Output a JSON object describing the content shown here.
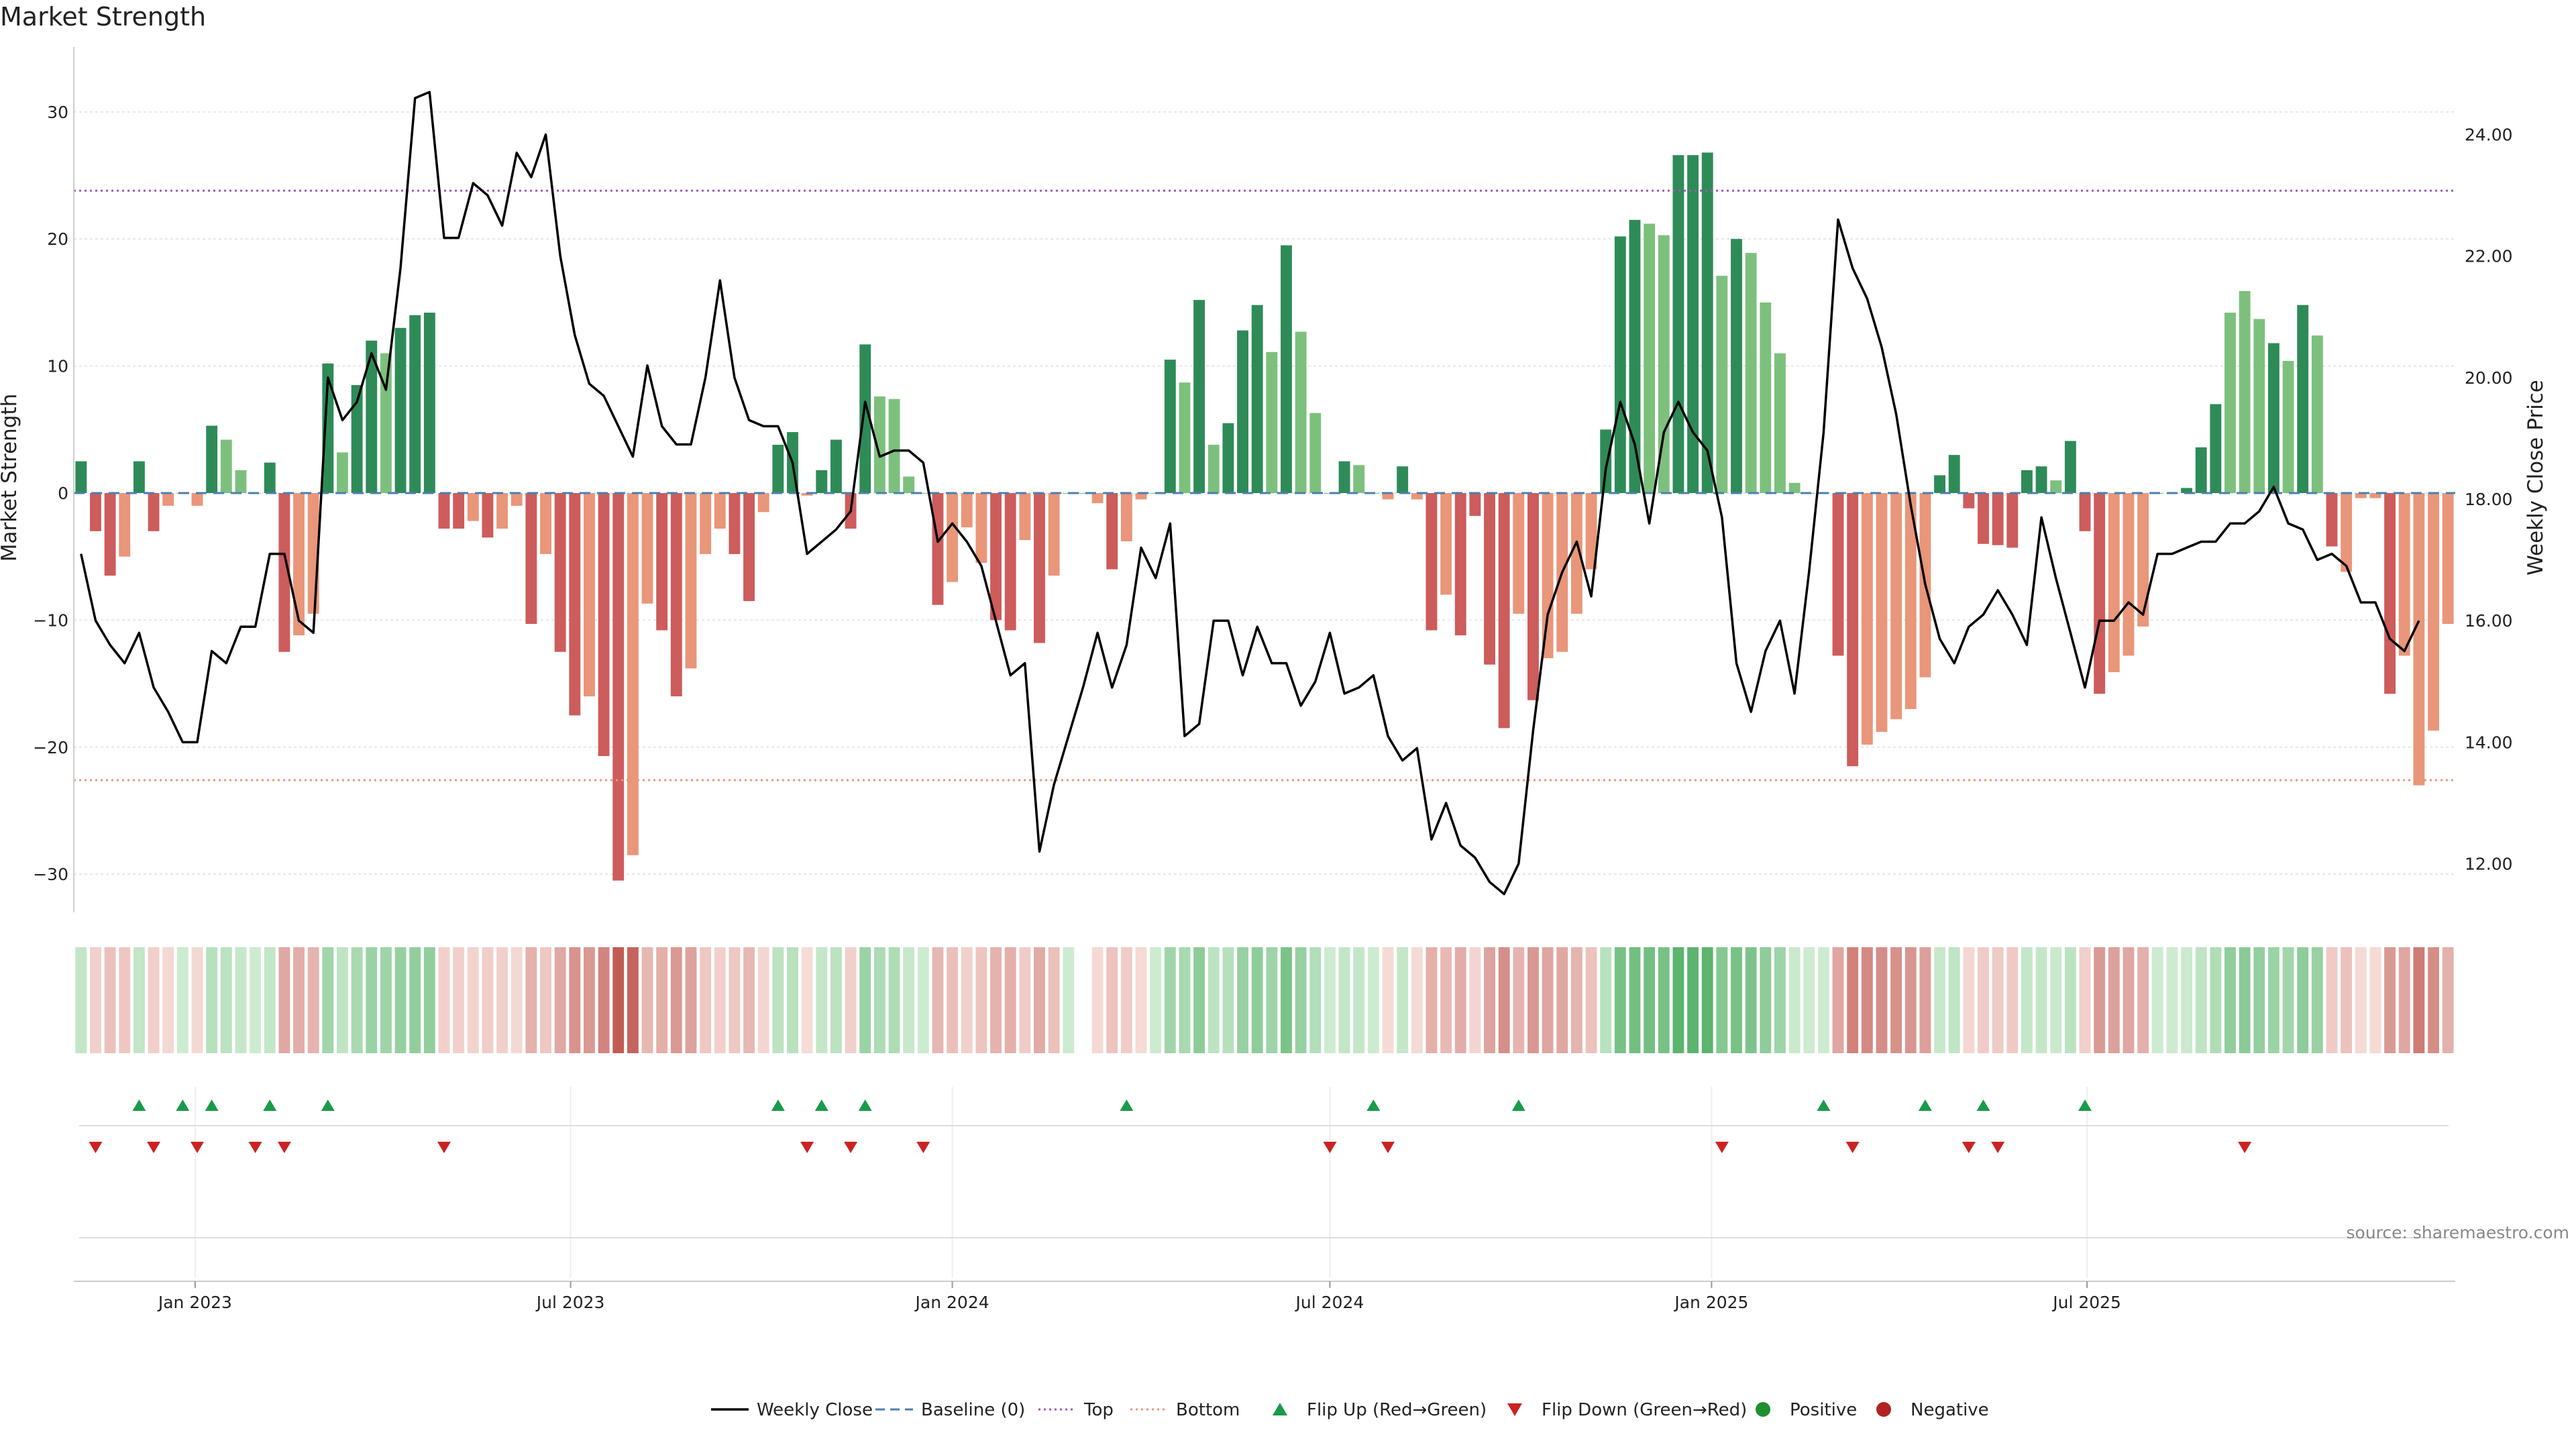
{
  "chart_data": {
    "title": "Market Strength",
    "type": "bar",
    "x_start": "2022-11-07",
    "x_step_days": 7,
    "left_axis": {
      "label": "Market Strength",
      "ylim": [
        -33,
        33
      ],
      "ticks": [
        30,
        20,
        10,
        0,
        -10,
        -20,
        -30
      ],
      "tick_labels": [
        "30",
        "20",
        "10",
        "0",
        "−10",
        "−20",
        "−30"
      ]
    },
    "right_axis": {
      "label": "Weekly Close Price",
      "ylim": [
        11.2,
        25.0
      ],
      "ticks": [
        24,
        22,
        20,
        18,
        16,
        14,
        12
      ],
      "tick_labels": [
        "24.00",
        "22.00",
        "20.00",
        "18.00",
        "16.00",
        "14.00",
        "12.00"
      ]
    },
    "x_ticks": [
      {
        "date": "2023-01-01",
        "label": "Jan 2023"
      },
      {
        "date": "2023-07-01",
        "label": "Jul 2023"
      },
      {
        "date": "2024-01-01",
        "label": "Jan 2024"
      },
      {
        "date": "2024-07-01",
        "label": "Jul 2024"
      },
      {
        "date": "2025-01-01",
        "label": "Jan 2025"
      },
      {
        "date": "2025-07-01",
        "label": "Jul 2025"
      }
    ],
    "grid": true,
    "reference_lines": {
      "baseline": 0,
      "top": 23.8,
      "bottom": -22.6
    },
    "colors": {
      "strong_green": "#2e8b57",
      "light_green": "#7dc07d",
      "strong_red": "#cd5c5c",
      "light_red": "#e9967a",
      "heat_green_light": "#cdebd0",
      "heat_green_dark": "#4aab5e",
      "heat_red_light": "#f6dcd8",
      "heat_red_dark": "#c05a52",
      "top_line": "#9b59b6",
      "bottom_line": "#e9967a",
      "baseline": "#4a7fb0",
      "flip_up": "#1a9a4a",
      "flip_down": "#cc2222",
      "positive": "#1f8f2f",
      "negative": "#b22222",
      "price_line": "#000000"
    },
    "strength": [
      2.5,
      -3,
      -6.5,
      -5,
      2.5,
      -3,
      -1,
      0,
      -1,
      5.3,
      4.2,
      1.8,
      0,
      2.4,
      -12.5,
      -11.2,
      -9.5,
      10.2,
      3.2,
      8.5,
      12,
      11,
      13,
      14,
      14.2,
      -2.8,
      -2.8,
      -2.2,
      -3.5,
      -2.8,
      -1,
      -10.3,
      -4.8,
      -12.5,
      -17.5,
      -16,
      -20.7,
      -30.5,
      -28.5,
      -8.7,
      -10.8,
      -16,
      -13.8,
      -4.8,
      -2.8,
      -4.8,
      -8.5,
      -1.5,
      3.8,
      4.8,
      -0.2,
      1.8,
      4.2,
      -2.8,
      11.7,
      7.6,
      7.4,
      1.3,
      0,
      -8.8,
      -7,
      -2.7,
      -5.5,
      -10,
      -10.8,
      -3.7,
      -11.8,
      -6.5,
      0,
      0,
      -0.8,
      -6,
      -3.8,
      -0.5,
      0,
      10.5,
      8.7,
      15.2,
      3.8,
      5.5,
      12.8,
      14.8,
      11.1,
      19.5,
      12.7,
      6.3,
      0,
      2.5,
      2.2,
      0,
      -0.5,
      2.1,
      -0.5,
      -10.8,
      -8,
      -11.2,
      -1.8,
      -13.5,
      -18.5,
      -9.5,
      -16.3,
      -13,
      -12.5,
      -9.5,
      -6,
      5,
      20.2,
      21.5,
      21.2,
      20.3,
      26.6,
      26.6,
      26.8,
      17.1,
      20,
      18.9,
      15,
      11,
      0.8,
      0,
      0,
      -12.8,
      -21.5,
      -19.8,
      -18.8,
      -17.8,
      -17,
      -14.5,
      1.4,
      3,
      -1.2,
      -4,
      -4.1,
      -4.3,
      1.8,
      2.1,
      1,
      4.1,
      -3,
      -15.8,
      -14.1,
      -12.8,
      -10.5,
      0,
      0,
      0.4,
      3.6,
      7,
      14.2,
      15.9,
      13.7,
      11.8,
      10.4,
      14.8,
      12.4,
      -4.2,
      -6.2,
      -0.4,
      -0.4,
      -15.8,
      -12.8,
      -23,
      -18.7,
      -10.3
    ],
    "strength_strong": [
      1,
      1,
      1,
      0,
      1,
      1,
      0,
      0,
      0,
      1,
      0,
      0,
      0,
      1,
      1,
      0,
      0,
      1,
      0,
      1,
      1,
      0,
      1,
      1,
      1,
      1,
      1,
      0,
      1,
      0,
      0,
      1,
      0,
      1,
      1,
      0,
      1,
      1,
      0,
      0,
      1,
      1,
      0,
      0,
      0,
      1,
      1,
      0,
      1,
      1,
      0,
      1,
      1,
      1,
      1,
      0,
      0,
      0,
      0,
      1,
      0,
      0,
      0,
      1,
      1,
      0,
      1,
      0,
      0,
      0,
      0,
      1,
      0,
      0,
      0,
      1,
      0,
      1,
      0,
      1,
      1,
      1,
      0,
      1,
      0,
      0,
      0,
      1,
      0,
      0,
      0,
      1,
      0,
      1,
      0,
      1,
      1,
      1,
      1,
      0,
      1,
      0,
      0,
      0,
      0,
      1,
      1,
      1,
      0,
      0,
      1,
      1,
      1,
      0,
      1,
      0,
      0,
      0,
      0,
      0,
      0,
      1,
      1,
      0,
      0,
      0,
      0,
      0,
      1,
      1,
      1,
      1,
      1,
      1,
      1,
      1,
      0,
      1,
      1,
      1,
      0,
      0,
      0,
      0,
      0,
      1,
      1,
      1,
      0,
      0,
      0,
      1,
      0,
      1,
      0,
      1,
      0,
      0,
      0,
      1,
      0,
      0
    ],
    "price": [
      17.1,
      16.0,
      15.6,
      15.3,
      15.8,
      14.9,
      14.5,
      14.0,
      14.0,
      15.5,
      15.3,
      15.9,
      15.9,
      17.1,
      17.1,
      16.0,
      15.8,
      20.0,
      19.3,
      19.6,
      20.4,
      19.8,
      21.8,
      24.6,
      24.7,
      22.3,
      22.3,
      23.2,
      23.0,
      22.5,
      23.7,
      23.3,
      24.0,
      22.0,
      20.7,
      19.9,
      19.7,
      19.2,
      18.7,
      20.2,
      19.2,
      18.9,
      18.9,
      20.0,
      21.6,
      20.0,
      19.3,
      19.2,
      19.2,
      18.6,
      17.1,
      17.3,
      17.5,
      17.8,
      19.6,
      18.7,
      18.8,
      18.8,
      18.6,
      17.3,
      17.6,
      17.3,
      16.9,
      16.0,
      15.1,
      15.3,
      12.2,
      13.3,
      14.1,
      14.9,
      15.8,
      14.9,
      15.6,
      17.2,
      16.7,
      17.6,
      14.1,
      14.3,
      16.0,
      16.0,
      15.1,
      15.9,
      15.3,
      15.3,
      14.6,
      15.0,
      15.8,
      14.8,
      14.9,
      15.1,
      14.1,
      13.7,
      13.9,
      12.4,
      13.0,
      12.3,
      12.1,
      11.7,
      11.5,
      12.0,
      14.2,
      16.1,
      16.8,
      17.3,
      16.4,
      18.5,
      19.6,
      18.9,
      17.6,
      19.1,
      19.6,
      19.1,
      18.8,
      17.7,
      15.3,
      14.5,
      15.5,
      16.0,
      14.8,
      16.8,
      19.1,
      22.6,
      21.8,
      21.3,
      20.5,
      19.4,
      17.9,
      16.6,
      15.7,
      15.3,
      15.9,
      16.1,
      16.5,
      16.1,
      15.6,
      17.7,
      16.7,
      15.8,
      14.9,
      16.0,
      16.0,
      16.3,
      16.1,
      17.1,
      17.1,
      17.2,
      17.3,
      17.3,
      17.6,
      17.6,
      17.8,
      18.2,
      17.6,
      17.5,
      17.0,
      17.1,
      16.9,
      16.3,
      16.3,
      15.7,
      15.5,
      16.0
    ],
    "flip_up_weeks": [
      4,
      7,
      9,
      13,
      17,
      48,
      51,
      54,
      72,
      89,
      99,
      120,
      127,
      131,
      138
    ],
    "flip_down_weeks": [
      1,
      5,
      8,
      12,
      14,
      25,
      50,
      53,
      58,
      86,
      90,
      113,
      122,
      130,
      132,
      149
    ],
    "legend": [
      {
        "label": "Weekly Close",
        "symbol": "solid-line"
      },
      {
        "label": "Baseline (0)",
        "symbol": "dashed-line"
      },
      {
        "label": "Top",
        "symbol": "dotted-line-purple"
      },
      {
        "label": "Bottom",
        "symbol": "dotted-line-orange"
      },
      {
        "label": "Flip Up (Red→Green)",
        "symbol": "triangle-up"
      },
      {
        "label": "Flip Down (Green→Red)",
        "symbol": "triangle-down"
      },
      {
        "label": "Positive",
        "symbol": "dot-green"
      },
      {
        "label": "Negative",
        "symbol": "dot-red"
      }
    ],
    "legend_placement": "bottom-center",
    "source": "source: sharemaestro.com"
  }
}
